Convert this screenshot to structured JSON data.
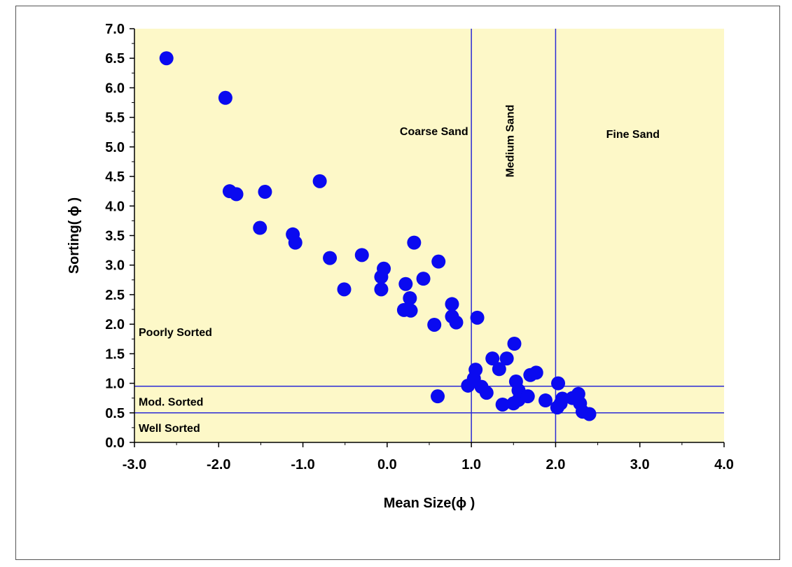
{
  "chart_data": {
    "type": "scatter",
    "title": "",
    "xlabel": "Mean Size(ϕ )",
    "ylabel": "Sorting( ϕ )",
    "xlim": [
      -3.0,
      4.0
    ],
    "ylim": [
      0.0,
      7.0
    ],
    "x_ticks": [
      "-3.0",
      "-2.0",
      "-1.0",
      "0.0",
      "1.0",
      "2.0",
      "3.0",
      "4.0"
    ],
    "y_ticks": [
      "0.0",
      "0.5",
      "1.0",
      "1.5",
      "2.0",
      "2.5",
      "3.0",
      "3.5",
      "4.0",
      "4.5",
      "5.0",
      "5.5",
      "6.0",
      "6.5",
      "7.0"
    ],
    "grid": false,
    "legend": "none",
    "colors": {
      "plot_background": "#fdf8c8",
      "marker": "#0a0af0",
      "reference_line": "#2a2ad6"
    },
    "reference_lines": {
      "vertical_x": [
        1.0,
        2.0
      ],
      "horizontal_y": [
        0.95,
        0.5
      ]
    },
    "region_labels": [
      {
        "text": "Coarse Sand",
        "x": 0.15,
        "y": 5.2,
        "rotate": 0
      },
      {
        "text": "Medium Sand",
        "x": 1.5,
        "y": 5.1,
        "rotate": -90
      },
      {
        "text": "Fine Sand",
        "x": 2.6,
        "y": 5.15,
        "rotate": 0
      },
      {
        "text": "Poorly Sorted",
        "x": -2.95,
        "y": 1.8,
        "rotate": 0
      },
      {
        "text": "Mod. Sorted",
        "x": -2.95,
        "y": 0.62,
        "rotate": 0
      },
      {
        "text": "Well Sorted",
        "x": -2.95,
        "y": 0.18,
        "rotate": 0
      }
    ],
    "points": [
      [
        -2.62,
        6.5
      ],
      [
        -1.92,
        5.83
      ],
      [
        -1.87,
        4.25
      ],
      [
        -1.79,
        4.2
      ],
      [
        -1.45,
        4.24
      ],
      [
        -0.8,
        4.42
      ],
      [
        -1.51,
        3.63
      ],
      [
        -1.12,
        3.52
      ],
      [
        -1.09,
        3.38
      ],
      [
        -0.68,
        3.12
      ],
      [
        -0.3,
        3.17
      ],
      [
        -0.04,
        2.94
      ],
      [
        -0.07,
        2.8
      ],
      [
        -0.07,
        2.59
      ],
      [
        -0.51,
        2.59
      ],
      [
        0.32,
        3.38
      ],
      [
        0.61,
        3.06
      ],
      [
        0.43,
        2.77
      ],
      [
        0.22,
        2.68
      ],
      [
        0.27,
        2.44
      ],
      [
        0.2,
        2.24
      ],
      [
        0.28,
        2.23
      ],
      [
        0.56,
        1.99
      ],
      [
        0.77,
        2.34
      ],
      [
        0.77,
        2.13
      ],
      [
        0.82,
        2.03
      ],
      [
        1.07,
        2.11
      ],
      [
        1.05,
        1.23
      ],
      [
        1.25,
        1.42
      ],
      [
        1.42,
        1.42
      ],
      [
        1.51,
        1.67
      ],
      [
        1.33,
        1.24
      ],
      [
        0.96,
        0.96
      ],
      [
        1.03,
        1.08
      ],
      [
        1.12,
        0.94
      ],
      [
        1.18,
        0.84
      ],
      [
        0.6,
        0.78
      ],
      [
        1.37,
        0.64
      ],
      [
        1.5,
        0.66
      ],
      [
        1.56,
        0.72
      ],
      [
        1.53,
        1.03
      ],
      [
        1.56,
        0.88
      ],
      [
        1.67,
        0.78
      ],
      [
        1.7,
        1.14
      ],
      [
        1.77,
        1.18
      ],
      [
        1.88,
        0.71
      ],
      [
        2.03,
        1.0
      ],
      [
        2.02,
        0.59
      ],
      [
        2.06,
        0.66
      ],
      [
        2.08,
        0.74
      ],
      [
        2.2,
        0.75
      ],
      [
        2.27,
        0.82
      ],
      [
        2.29,
        0.66
      ],
      [
        2.32,
        0.52
      ],
      [
        2.4,
        0.48
      ]
    ]
  }
}
